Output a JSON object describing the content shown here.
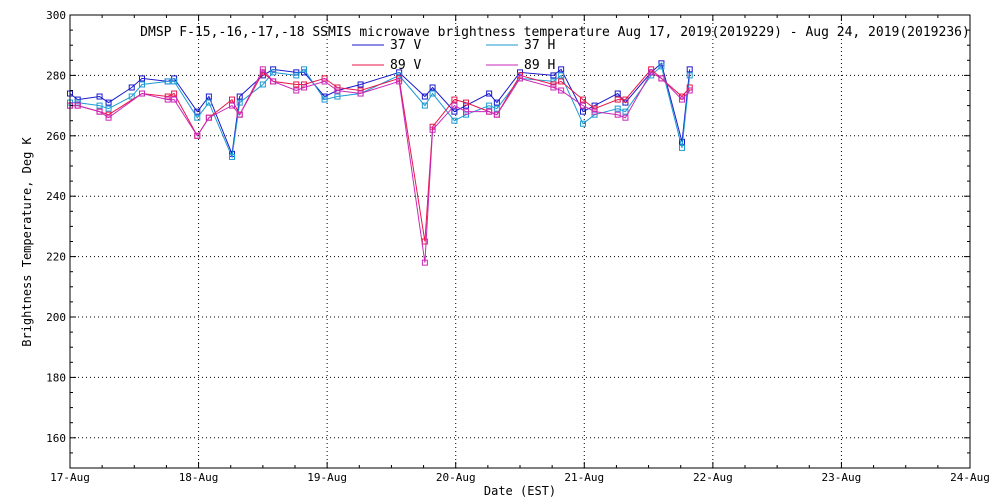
{
  "chart_data": {
    "type": "line",
    "title": "DMSP F-15,-16,-17,-18 SSMIS microwave brightness temperature Aug 17, 2019(2019229) - Aug 24, 2019(2019236)",
    "xlabel": "Date (EST)",
    "ylabel": "Brightness Temperature, Deg K",
    "xlim": [
      0,
      7
    ],
    "ylim": [
      150,
      300
    ],
    "yticks": [
      160,
      180,
      200,
      220,
      240,
      260,
      280,
      300
    ],
    "xticks": [
      0,
      1,
      2,
      3,
      4,
      5,
      6,
      7
    ],
    "xtick_labels": [
      "17-Aug",
      "18-Aug",
      "19-Aug",
      "20-Aug",
      "21-Aug",
      "22-Aug",
      "23-Aug",
      "24-Aug"
    ],
    "x_unit": "days since 17-Aug 00:00 EST",
    "grid": true,
    "legend_position": "top-center",
    "series": [
      {
        "name": "37 V",
        "color": "#1a1acc",
        "points": [
          [
            0,
            274
          ],
          [
            0.06,
            272
          ],
          [
            0.23,
            273
          ],
          [
            0.3,
            271
          ],
          [
            0.48,
            276
          ],
          [
            0.56,
            279
          ],
          [
            0.76,
            278
          ],
          [
            0.81,
            279
          ],
          [
            0.99,
            268
          ],
          [
            1.08,
            273
          ],
          [
            1.26,
            254
          ],
          [
            1.32,
            273
          ],
          [
            1.5,
            280
          ],
          [
            1.58,
            282
          ],
          [
            1.76,
            281
          ],
          [
            1.82,
            281
          ],
          [
            1.98,
            273
          ],
          [
            2.08,
            275
          ],
          [
            2.26,
            277
          ],
          [
            2.56,
            281
          ],
          [
            2.76,
            273
          ],
          [
            2.82,
            276
          ],
          [
            2.99,
            268
          ],
          [
            3.08,
            270
          ],
          [
            3.26,
            274
          ],
          [
            3.32,
            271
          ],
          [
            3.5,
            281
          ],
          [
            3.76,
            280
          ],
          [
            3.82,
            282
          ],
          [
            3.99,
            268
          ],
          [
            4.08,
            270
          ],
          [
            4.26,
            274
          ],
          [
            4.32,
            271
          ],
          [
            4.52,
            281
          ],
          [
            4.6,
            284
          ],
          [
            4.76,
            258
          ],
          [
            4.82,
            282
          ]
        ]
      },
      {
        "name": "37 H",
        "color": "#1c9bd4",
        "points": [
          [
            0,
            271
          ],
          [
            0.06,
            271
          ],
          [
            0.23,
            270
          ],
          [
            0.3,
            269
          ],
          [
            0.48,
            273
          ],
          [
            0.56,
            277
          ],
          [
            0.76,
            278
          ],
          [
            0.81,
            278
          ],
          [
            0.99,
            266
          ],
          [
            1.08,
            271
          ],
          [
            1.26,
            253
          ],
          [
            1.32,
            271
          ],
          [
            1.5,
            277
          ],
          [
            1.58,
            281
          ],
          [
            1.76,
            280
          ],
          [
            1.82,
            282
          ],
          [
            1.98,
            272
          ],
          [
            2.08,
            273
          ],
          [
            2.26,
            274
          ],
          [
            2.56,
            280
          ],
          [
            2.76,
            270
          ],
          [
            2.82,
            274
          ],
          [
            2.99,
            265
          ],
          [
            3.08,
            267
          ],
          [
            3.26,
            270
          ],
          [
            3.32,
            269
          ],
          [
            3.5,
            279
          ],
          [
            3.76,
            278
          ],
          [
            3.82,
            280
          ],
          [
            3.99,
            264
          ],
          [
            4.08,
            267
          ],
          [
            4.26,
            269
          ],
          [
            4.32,
            268
          ],
          [
            4.52,
            280
          ],
          [
            4.6,
            283
          ],
          [
            4.76,
            256
          ],
          [
            4.82,
            280
          ]
        ]
      },
      {
        "name": "89 V",
        "color": "#e8174a",
        "points": [
          [
            0,
            270
          ],
          [
            0.06,
            270
          ],
          [
            0.23,
            268
          ],
          [
            0.3,
            267
          ],
          [
            0.56,
            274
          ],
          [
            0.76,
            273
          ],
          [
            0.81,
            274
          ],
          [
            0.99,
            260
          ],
          [
            1.08,
            266
          ],
          [
            1.26,
            272
          ],
          [
            1.32,
            267
          ],
          [
            1.5,
            281
          ],
          [
            1.58,
            278
          ],
          [
            1.76,
            277
          ],
          [
            1.82,
            277
          ],
          [
            1.98,
            279
          ],
          [
            2.08,
            276
          ],
          [
            2.26,
            275
          ],
          [
            2.56,
            279
          ],
          [
            2.76,
            225
          ],
          [
            2.82,
            263
          ],
          [
            2.99,
            272
          ],
          [
            3.08,
            271
          ],
          [
            3.26,
            268
          ],
          [
            3.32,
            267
          ],
          [
            3.5,
            280
          ],
          [
            3.76,
            277
          ],
          [
            3.82,
            278
          ],
          [
            3.99,
            272
          ],
          [
            4.08,
            269
          ],
          [
            4.26,
            272
          ],
          [
            4.32,
            272
          ],
          [
            4.52,
            282
          ],
          [
            4.6,
            279
          ],
          [
            4.76,
            273
          ],
          [
            4.82,
            276
          ]
        ]
      },
      {
        "name": "89 H",
        "color": "#c928b8",
        "points": [
          [
            0,
            270
          ],
          [
            0.06,
            270
          ],
          [
            0.23,
            268
          ],
          [
            0.3,
            266
          ],
          [
            0.56,
            274
          ],
          [
            0.76,
            272
          ],
          [
            0.81,
            272
          ],
          [
            0.99,
            260
          ],
          [
            1.08,
            266
          ],
          [
            1.26,
            270
          ],
          [
            1.32,
            267
          ],
          [
            1.5,
            282
          ],
          [
            1.58,
            278
          ],
          [
            1.76,
            275
          ],
          [
            1.82,
            276
          ],
          [
            1.98,
            278
          ],
          [
            2.08,
            275
          ],
          [
            2.26,
            274
          ],
          [
            2.56,
            278
          ],
          [
            2.76,
            218
          ],
          [
            2.82,
            262
          ],
          [
            2.99,
            270
          ],
          [
            3.08,
            268
          ],
          [
            3.26,
            268
          ],
          [
            3.32,
            267
          ],
          [
            3.5,
            279
          ],
          [
            3.76,
            276
          ],
          [
            3.82,
            275
          ],
          [
            3.99,
            270
          ],
          [
            4.08,
            268
          ],
          [
            4.26,
            267
          ],
          [
            4.32,
            266
          ],
          [
            4.52,
            281
          ],
          [
            4.6,
            279
          ],
          [
            4.76,
            272
          ],
          [
            4.82,
            275
          ]
        ]
      }
    ]
  }
}
